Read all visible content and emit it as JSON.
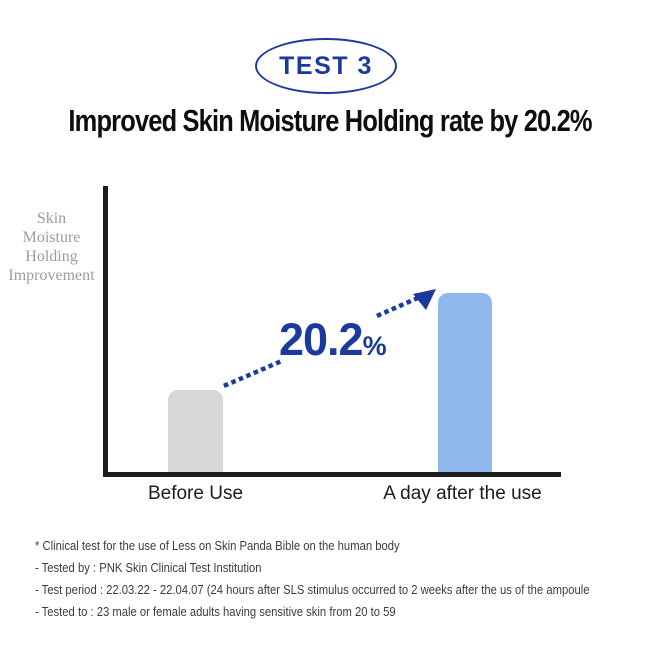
{
  "badge": {
    "label": "TEST 3"
  },
  "title": "Improved Skin Moisture Holding rate by 20.2%",
  "chart": {
    "ylabel_lines": [
      "Skin",
      "Moisture",
      "Holding",
      "Improvement"
    ]
  },
  "chart_data": {
    "type": "bar",
    "title": "Improved Skin Moisture Holding rate by 20.2%",
    "categories": [
      "Before Use",
      "A day after the use"
    ],
    "values": [
      46,
      100
    ],
    "values_note": "no numeric axis shown; values are bar heights relative to the tallest bar (%)",
    "ylabel": "Skin Moisture Holding Improvement",
    "xlabel": "",
    "annotation": "20.2%",
    "bar_colors": [
      "#d6d7d6",
      "#8fb7ec"
    ],
    "grid": false,
    "legend": false
  },
  "annotation": {
    "value": "20.2",
    "unit": "%"
  },
  "footnotes": [
    "* Clinical test for the use of Less on Skin Panda Bible on the human body",
    "- Tested by : PNK Skin Clinical Test Institution",
    "- Test period : 22.03.22 - 22.04.07 (24 hours after SLS stimulus occurred to 2 weeks after the us of the ampoule",
    "- Tested to : 23 male or female adults having sensitive skin from 20 to 59"
  ],
  "colors": {
    "navy": "#1b3a9e",
    "bar_gray": "#d6d7d6",
    "bar_blue": "#8fb7ec",
    "axis": "#1d1d1d",
    "title_text": "#0e0e0e",
    "ylabel_text": "#9c9c9c",
    "footnote_text": "#3c3c3c"
  }
}
